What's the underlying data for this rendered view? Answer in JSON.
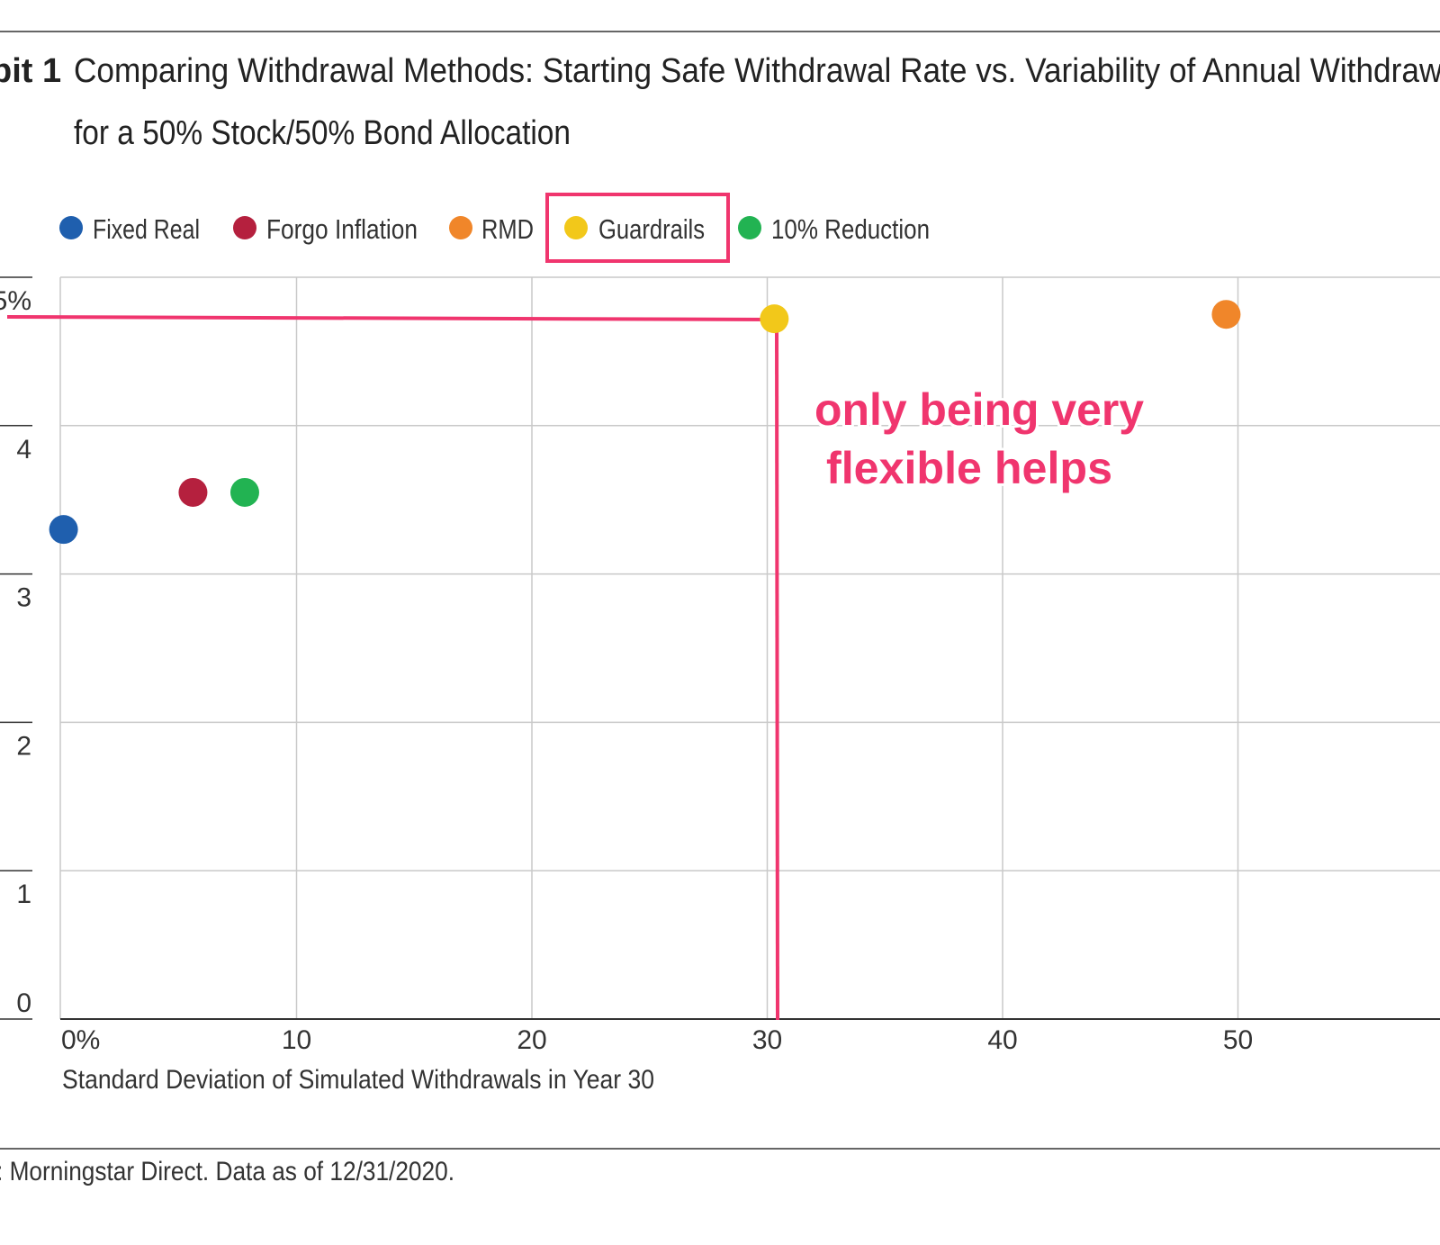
{
  "header": {
    "exhibit_label": "bit 1",
    "title_line1": "Comparing Withdrawal Methods: Starting Safe Withdrawal Rate vs. Variability of Annual Withdrawa",
    "title_line2": "for a 50% Stock/50% Bond Allocation"
  },
  "legend": {
    "items": [
      {
        "label": "Fixed Real",
        "color": "#1f5fae"
      },
      {
        "label": "Forgo Inflation",
        "color": "#b5203e"
      },
      {
        "label": "RMD",
        "color": "#f0862a"
      },
      {
        "label": "Guardrails",
        "color": "#f2c81a"
      },
      {
        "label": "10% Reduction",
        "color": "#22b352"
      }
    ],
    "highlighted": "Guardrails"
  },
  "chart_data": {
    "type": "scatter",
    "xlabel": "Standard Deviation of Simulated Withdrawals in Year 30",
    "ylabel": "",
    "xlim": [
      0,
      57
    ],
    "ylim": [
      0,
      5
    ],
    "x_ticks": [
      "0%",
      "10",
      "20",
      "30",
      "40",
      "50"
    ],
    "x_tick_values": [
      0,
      10,
      20,
      30,
      40,
      50
    ],
    "y_ticks": [
      "0",
      "1",
      "2",
      "3",
      "4",
      "5%"
    ],
    "y_tick_values": [
      0,
      1,
      2,
      3,
      4,
      5
    ],
    "grid": true,
    "legend_position": "top-left",
    "series": [
      {
        "name": "Fixed Real",
        "color": "#1f5fae",
        "x": [
          0.1
        ],
        "y": [
          3.3
        ]
      },
      {
        "name": "Forgo Inflation",
        "color": "#b5203e",
        "x": [
          5.6
        ],
        "y": [
          3.55
        ]
      },
      {
        "name": "RMD",
        "color": "#f0862a",
        "x": [
          49.5
        ],
        "y": [
          4.75
        ]
      },
      {
        "name": "Guardrails",
        "color": "#f2c81a",
        "x": [
          30.3
        ],
        "y": [
          4.72
        ]
      },
      {
        "name": "10% Reduction",
        "color": "#22b352",
        "x": [
          7.8
        ],
        "y": [
          3.55
        ]
      }
    ],
    "annotation": {
      "text_line1": "only being very",
      "text_line2": "flexible helps",
      "color": "#f0356e"
    }
  },
  "footer": {
    "source": ": Morningstar Direct. Data as of 12/31/2020."
  }
}
